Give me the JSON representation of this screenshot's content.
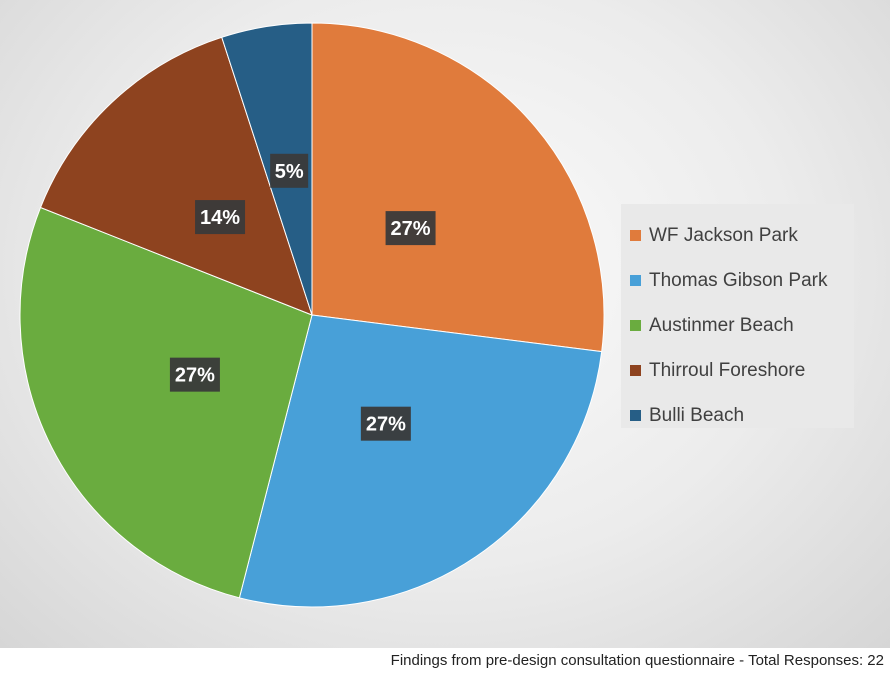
{
  "chart_data": {
    "type": "pie",
    "title": "",
    "slices": [
      {
        "label": "WF Jackson Park",
        "value": 27,
        "display": "27%",
        "color": "#e07b3c"
      },
      {
        "label": "Thomas Gibson Park",
        "value": 27,
        "display": "27%",
        "color": "#48a0d8"
      },
      {
        "label": "Austinmer Beach",
        "value": 27,
        "display": "27%",
        "color": "#6aac3f"
      },
      {
        "label": "Thirroul Foreshore",
        "value": 14,
        "display": "14%",
        "color": "#8e431f"
      },
      {
        "label": "Bulli Beach",
        "value": 5,
        "display": "5%",
        "color": "#265e86"
      }
    ],
    "legend_position": "right"
  },
  "caption": "Findings from pre-design consultation questionnaire - Total Responses: 22"
}
